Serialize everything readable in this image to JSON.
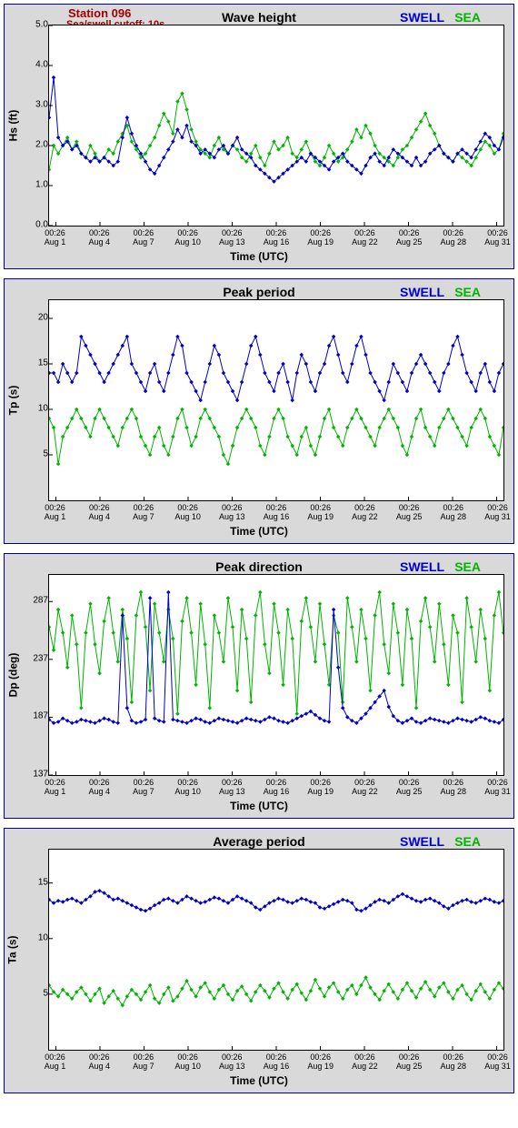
{
  "station_label": "Station 096",
  "cutoff_label": "Sea/swell cutoff: 10s",
  "legend": {
    "swell": "SWELL",
    "sea": "SEA"
  },
  "x_axis_label": "Time (UTC)",
  "colors": {
    "swell": "#0000c8",
    "sea": "#00b400",
    "panel_bg": "#d9d9d9",
    "panel_border": "#000080",
    "plot_bg": "#ffffff",
    "station_text": "#a00000"
  },
  "x_ticks": [
    {
      "pos": 0.015,
      "time": "00:26",
      "day": "Aug 1"
    },
    {
      "pos": 0.112,
      "time": "00:26",
      "day": "Aug 4"
    },
    {
      "pos": 0.209,
      "time": "00:26",
      "day": "Aug 7"
    },
    {
      "pos": 0.306,
      "time": "00:26",
      "day": "Aug 10"
    },
    {
      "pos": 0.403,
      "time": "00:26",
      "day": "Aug 13"
    },
    {
      "pos": 0.5,
      "time": "00:26",
      "day": "Aug 16"
    },
    {
      "pos": 0.597,
      "time": "00:26",
      "day": "Aug 19"
    },
    {
      "pos": 0.694,
      "time": "00:26",
      "day": "Aug 22"
    },
    {
      "pos": 0.791,
      "time": "00:26",
      "day": "Aug 25"
    },
    {
      "pos": 0.888,
      "time": "00:26",
      "day": "Aug 28"
    },
    {
      "pos": 0.985,
      "time": "00:26",
      "day": "Aug 31"
    }
  ],
  "panels": [
    {
      "id": "hs",
      "title": "Wave height",
      "ylabel": "Hs (ft)",
      "show_station": true,
      "ymin": 0.0,
      "ymax": 5.0,
      "yticks": [
        0.0,
        1.0,
        2.0,
        3.0,
        4.0,
        5.0
      ],
      "ytick_fmt": "1",
      "swell": [
        2.7,
        3.7,
        2.2,
        2.0,
        2.1,
        1.9,
        2.0,
        1.8,
        1.7,
        1.6,
        1.7,
        1.6,
        1.7,
        1.6,
        1.5,
        1.6,
        2.2,
        2.7,
        2.3,
        2.0,
        1.8,
        1.6,
        1.4,
        1.3,
        1.5,
        1.7,
        1.9,
        2.1,
        2.4,
        2.2,
        2.5,
        2.1,
        2.0,
        1.8,
        1.9,
        1.8,
        1.7,
        1.9,
        2.0,
        1.8,
        2.0,
        2.2,
        1.9,
        1.8,
        1.7,
        1.5,
        1.4,
        1.3,
        1.2,
        1.1,
        1.2,
        1.3,
        1.4,
        1.5,
        1.6,
        1.7,
        1.6,
        1.8,
        1.7,
        1.6,
        1.5,
        1.4,
        1.6,
        1.7,
        1.8,
        1.6,
        1.5,
        1.4,
        1.3,
        1.5,
        1.7,
        1.8,
        1.6,
        1.5,
        1.7,
        1.9,
        1.8,
        1.7,
        1.6,
        1.5,
        1.7,
        1.5,
        1.6,
        1.8,
        1.9,
        2.0,
        1.8,
        1.7,
        1.6,
        1.8,
        1.9,
        1.8,
        1.7,
        1.9,
        2.1,
        2.3,
        2.2,
        2.0,
        1.9,
        2.2
      ],
      "sea": [
        1.4,
        2.0,
        1.8,
        2.0,
        2.2,
        1.9,
        2.1,
        1.8,
        1.7,
        2.0,
        1.8,
        1.6,
        1.7,
        1.9,
        1.8,
        2.1,
        2.3,
        2.5,
        2.1,
        1.9,
        1.7,
        1.8,
        2.0,
        2.2,
        2.5,
        2.8,
        2.6,
        2.3,
        3.1,
        3.3,
        2.9,
        2.4,
        2.1,
        1.9,
        1.8,
        1.7,
        2.0,
        2.2,
        1.9,
        1.8,
        2.0,
        1.9,
        1.7,
        1.6,
        1.8,
        2.0,
        1.7,
        1.5,
        1.8,
        2.1,
        1.9,
        2.0,
        2.2,
        1.8,
        1.7,
        1.9,
        2.1,
        1.8,
        1.6,
        1.5,
        1.7,
        2.0,
        1.8,
        1.6,
        1.7,
        1.9,
        2.1,
        2.4,
        2.2,
        2.5,
        2.3,
        2.0,
        1.8,
        1.7,
        1.6,
        1.5,
        1.7,
        1.9,
        2.0,
        2.2,
        2.4,
        2.6,
        2.8,
        2.5,
        2.3,
        2.0,
        1.8,
        1.7,
        1.6,
        1.8,
        1.7,
        1.6,
        1.5,
        1.7,
        1.9,
        2.1,
        2.0,
        1.8,
        1.9,
        2.3
      ]
    },
    {
      "id": "tp",
      "title": "Peak period",
      "ylabel": "Tp (s)",
      "show_station": false,
      "ymin": 0,
      "ymax": 22,
      "yticks": [
        5,
        10,
        15,
        20
      ],
      "ytick_fmt": "0",
      "swell": [
        14,
        14,
        13,
        15,
        14,
        13,
        14,
        18,
        17,
        16,
        15,
        14,
        13,
        14,
        15,
        16,
        17,
        18,
        15,
        14,
        13,
        12,
        14,
        15,
        13,
        12,
        14,
        16,
        18,
        17,
        14,
        13,
        12,
        11,
        13,
        15,
        17,
        16,
        14,
        13,
        12,
        11,
        13,
        15,
        17,
        18,
        16,
        14,
        13,
        12,
        14,
        15,
        13,
        11,
        14,
        16,
        15,
        13,
        12,
        14,
        15,
        17,
        18,
        16,
        14,
        13,
        15,
        17,
        18,
        16,
        14,
        13,
        12,
        11,
        13,
        15,
        14,
        13,
        12,
        14,
        15,
        16,
        15,
        14,
        13,
        12,
        14,
        15,
        17,
        18,
        16,
        14,
        13,
        12,
        14,
        15,
        13,
        12,
        14,
        15
      ],
      "sea": [
        9,
        8,
        4,
        7,
        8,
        9,
        10,
        9,
        8,
        7,
        9,
        10,
        9,
        8,
        7,
        6,
        8,
        9,
        10,
        9,
        7,
        6,
        5,
        7,
        8,
        6,
        5,
        7,
        9,
        10,
        8,
        6,
        7,
        9,
        10,
        9,
        8,
        7,
        5,
        4,
        6,
        8,
        9,
        10,
        9,
        8,
        6,
        5,
        7,
        9,
        10,
        9,
        7,
        6,
        5,
        7,
        8,
        6,
        5,
        7,
        9,
        10,
        8,
        7,
        6,
        8,
        9,
        10,
        9,
        8,
        7,
        6,
        8,
        9,
        10,
        9,
        8,
        6,
        5,
        7,
        9,
        10,
        8,
        7,
        6,
        8,
        9,
        10,
        9,
        8,
        7,
        6,
        8,
        9,
        10,
        9,
        7,
        6,
        5,
        8
      ]
    },
    {
      "id": "dp",
      "title": "Peak direction",
      "ylabel": "Dp (deg)",
      "show_station": false,
      "ymin": 137,
      "ymax": 310,
      "yticks": [
        137,
        187,
        237,
        287
      ],
      "ytick_fmt": "0",
      "swell": [
        185,
        182,
        183,
        186,
        184,
        182,
        183,
        185,
        184,
        183,
        182,
        184,
        186,
        185,
        183,
        182,
        275,
        195,
        184,
        182,
        183,
        185,
        290,
        186,
        184,
        183,
        295,
        185,
        184,
        183,
        182,
        184,
        186,
        185,
        183,
        182,
        184,
        186,
        185,
        184,
        183,
        182,
        184,
        186,
        185,
        184,
        183,
        185,
        187,
        186,
        184,
        183,
        182,
        184,
        186,
        188,
        190,
        192,
        189,
        186,
        184,
        183,
        280,
        230,
        195,
        187,
        184,
        182,
        186,
        190,
        195,
        200,
        205,
        210,
        196,
        188,
        184,
        182,
        184,
        186,
        183,
        182,
        184,
        186,
        185,
        184,
        183,
        182,
        184,
        186,
        185,
        184,
        183,
        185,
        187,
        186,
        184,
        183,
        182,
        185
      ],
      "sea": [
        265,
        245,
        280,
        260,
        230,
        275,
        250,
        195,
        260,
        285,
        250,
        225,
        270,
        290,
        260,
        235,
        280,
        255,
        200,
        275,
        295,
        265,
        210,
        285,
        260,
        235,
        280,
        255,
        190,
        270,
        290,
        260,
        215,
        285,
        250,
        195,
        275,
        260,
        235,
        290,
        265,
        210,
        280,
        255,
        200,
        275,
        295,
        250,
        225,
        285,
        260,
        215,
        280,
        255,
        190,
        270,
        290,
        265,
        235,
        285,
        250,
        215,
        275,
        260,
        200,
        290,
        265,
        235,
        280,
        255,
        210,
        275,
        295,
        250,
        225,
        285,
        260,
        215,
        280,
        255,
        195,
        270,
        290,
        265,
        235,
        285,
        250,
        215,
        275,
        260,
        200,
        290,
        265,
        235,
        280,
        255,
        210,
        275,
        295,
        260
      ]
    },
    {
      "id": "ta",
      "title": "Average period",
      "ylabel": "Ta (s)",
      "show_station": false,
      "ymin": 0,
      "ymax": 18,
      "yticks": [
        5,
        10,
        15
      ],
      "ytick_fmt": "0",
      "swell": [
        13.5,
        13.2,
        13.4,
        13.3,
        13.5,
        13.6,
        13.4,
        13.2,
        13.5,
        13.8,
        14.2,
        14.3,
        14.1,
        13.8,
        13.5,
        13.6,
        13.4,
        13.2,
        13.0,
        12.8,
        12.6,
        12.5,
        12.7,
        13.0,
        13.2,
        13.5,
        13.6,
        13.4,
        13.2,
        13.5,
        13.8,
        13.6,
        13.4,
        13.2,
        13.3,
        13.5,
        13.7,
        13.6,
        13.4,
        13.2,
        13.5,
        13.8,
        13.6,
        13.4,
        13.2,
        12.8,
        12.6,
        12.9,
        13.2,
        13.4,
        13.6,
        13.5,
        13.3,
        13.2,
        13.4,
        13.6,
        13.5,
        13.3,
        13.2,
        12.8,
        12.7,
        12.9,
        13.1,
        13.3,
        13.5,
        13.4,
        13.2,
        12.6,
        12.5,
        12.7,
        13.0,
        13.3,
        13.5,
        13.4,
        13.2,
        13.5,
        13.8,
        14.0,
        13.8,
        13.6,
        13.4,
        13.3,
        13.5,
        13.6,
        13.4,
        13.2,
        12.9,
        12.7,
        13.0,
        13.2,
        13.4,
        13.5,
        13.3,
        13.2,
        13.4,
        13.6,
        13.5,
        13.3,
        13.2,
        13.4
      ],
      "sea": [
        5.8,
        5.2,
        4.8,
        5.4,
        5.0,
        4.6,
        5.2,
        5.6,
        5.0,
        4.4,
        5.0,
        5.5,
        4.2,
        4.8,
        5.3,
        4.6,
        4.0,
        4.8,
        5.4,
        5.0,
        4.5,
        5.2,
        5.8,
        4.6,
        4.2,
        5.0,
        5.6,
        4.4,
        4.8,
        5.5,
        6.2,
        5.4,
        4.8,
        5.6,
        6.0,
        5.2,
        4.6,
        5.4,
        5.8,
        5.0,
        4.5,
        5.3,
        5.7,
        5.0,
        4.4,
        5.2,
        5.8,
        5.3,
        4.7,
        5.5,
        6.0,
        5.2,
        4.6,
        5.4,
        5.9,
        5.1,
        4.5,
        5.3,
        6.3,
        5.5,
        4.8,
        5.6,
        6.0,
        5.2,
        4.6,
        5.4,
        5.8,
        5.0,
        5.8,
        6.5,
        5.6,
        5.0,
        4.5,
        5.3,
        5.9,
        5.2,
        4.6,
        5.4,
        6.0,
        5.3,
        4.7,
        5.5,
        6.1,
        5.4,
        4.8,
        5.6,
        6.0,
        5.2,
        4.6,
        5.4,
        5.8,
        5.0,
        4.5,
        5.3,
        5.9,
        5.2,
        4.6,
        5.4,
        6.0,
        5.5
      ]
    }
  ]
}
